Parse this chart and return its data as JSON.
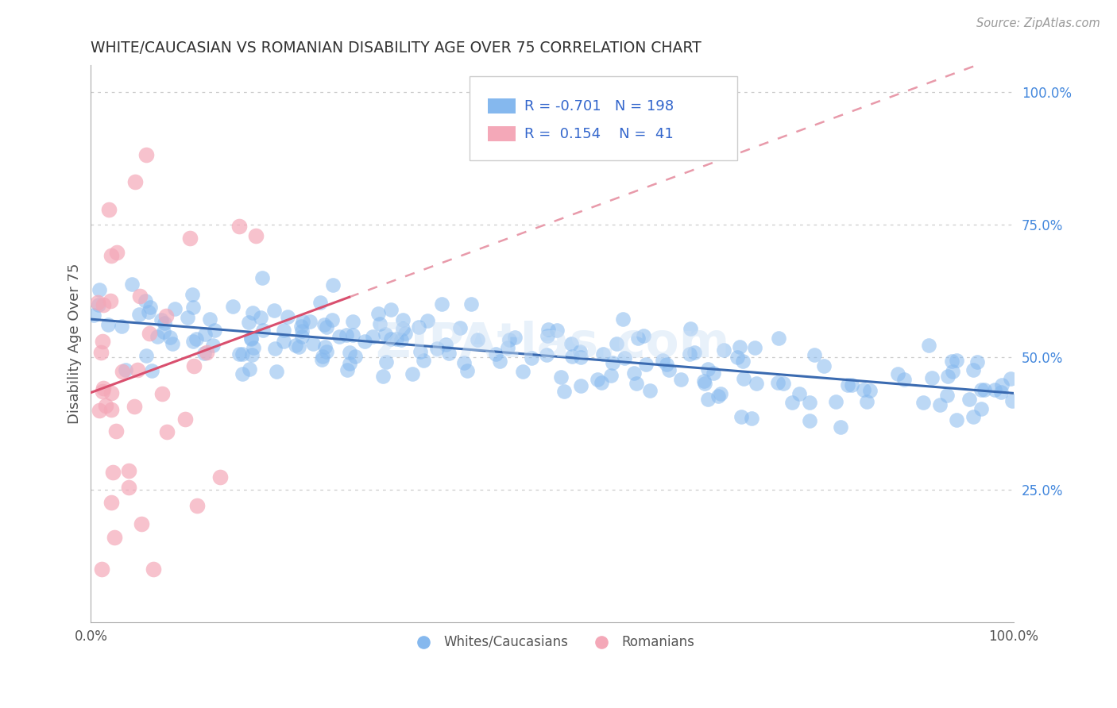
{
  "title": "WHITE/CAUCASIAN VS ROMANIAN DISABILITY AGE OVER 75 CORRELATION CHART",
  "source": "Source: ZipAtlas.com",
  "ylabel": "Disability Age Over 75",
  "xlim": [
    0,
    1
  ],
  "ylim": [
    0,
    1.05
  ],
  "ytick_positions": [
    0.25,
    0.5,
    0.75,
    1.0
  ],
  "watermark": "ZIPAtlas.com",
  "blue_color": "#85b8ee",
  "pink_color": "#f4a8b8",
  "blue_line_color": "#3a6ab0",
  "pink_line_color": "#d94f6e",
  "pink_line_dashed_color": "#e89aaa",
  "legend_blue_label": "Whites/Caucasians",
  "legend_pink_label": "Romanians",
  "R_blue": -0.701,
  "N_blue": 198,
  "R_pink": 0.154,
  "N_pink": 41,
  "background_color": "#ffffff",
  "grid_color": "#cccccc",
  "title_color": "#333333",
  "label_color": "#555555",
  "stat_color": "#3366cc",
  "right_tick_color": "#4488dd"
}
